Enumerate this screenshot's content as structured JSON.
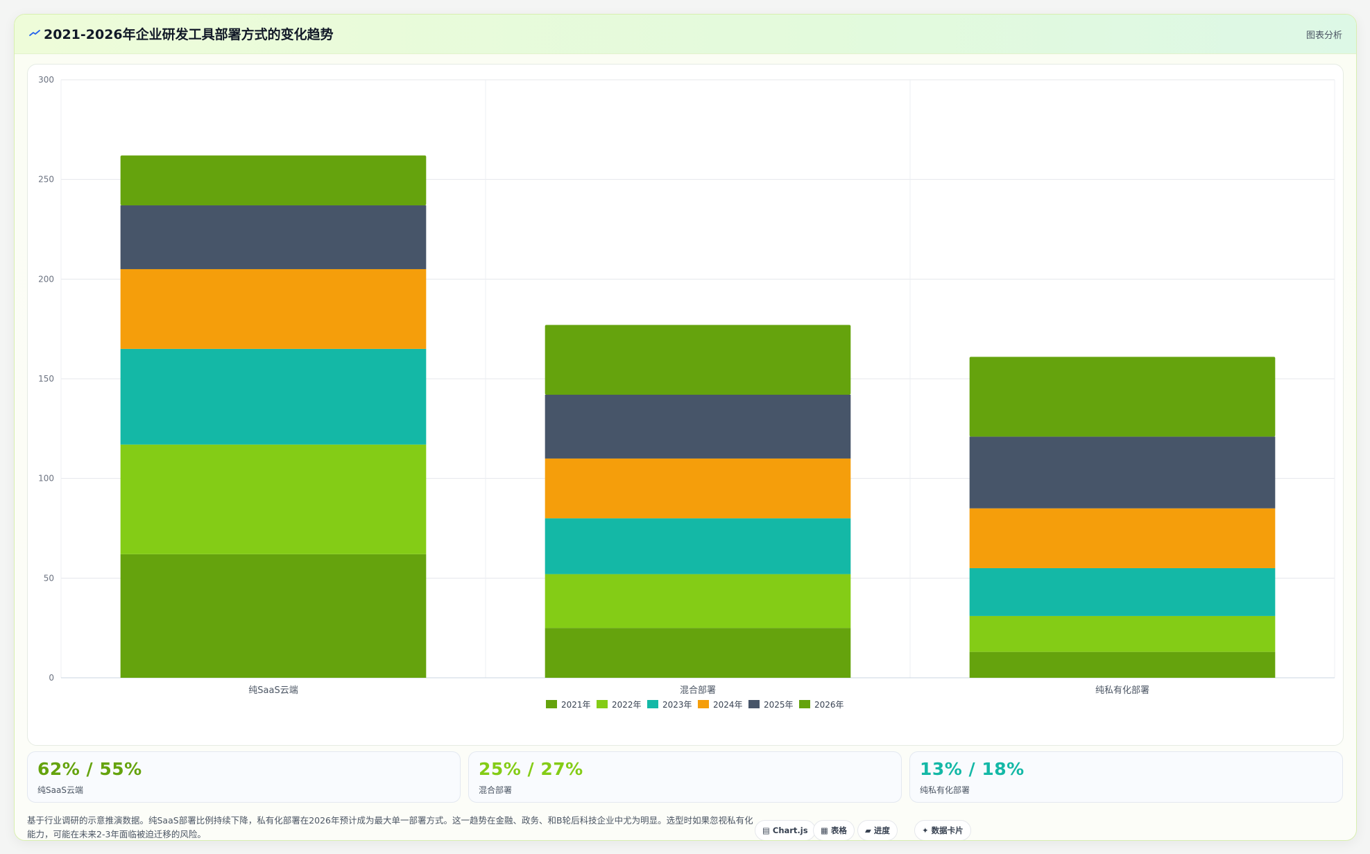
{
  "header": {
    "icon": "trend-line-icon",
    "title": "2021-2026年企业研发工具部署方式的变化趋势",
    "tag": "图表分析"
  },
  "chart_data": {
    "type": "bar",
    "stacked": true,
    "categories": [
      "纯SaaS云端",
      "混合部署",
      "纯私有化部署"
    ],
    "series": [
      {
        "name": "2021年",
        "color": "#65a30d",
        "values": [
          62,
          25,
          13
        ]
      },
      {
        "name": "2022年",
        "color": "#84cc16",
        "values": [
          55,
          27,
          18
        ]
      },
      {
        "name": "2023年",
        "color": "#14b8a6",
        "values": [
          48,
          28,
          24
        ]
      },
      {
        "name": "2024年",
        "color": "#f59e0b",
        "values": [
          40,
          30,
          30
        ]
      },
      {
        "name": "2025年",
        "color": "#475569",
        "values": [
          32,
          32,
          36
        ]
      },
      {
        "name": "2026年",
        "color": "#65a30d",
        "values": [
          25,
          35,
          40
        ]
      }
    ],
    "ylim": [
      0,
      300
    ],
    "yticks": [
      0,
      50,
      100,
      150,
      200,
      250,
      300
    ],
    "grid": true,
    "legend_position": "bottom"
  },
  "stats": [
    {
      "value": "62% / 55%",
      "label": "纯SaaS云端",
      "color": "#65a30d"
    },
    {
      "value": "25% / 27%",
      "label": "混合部署",
      "color": "#84cc16"
    },
    {
      "value": "13% / 18%",
      "label": "纯私有化部署",
      "color": "#14b8a6"
    }
  ],
  "note": "基于行业调研的示意推演数据。纯SaaS部署比例持续下降，私有化部署在2026年预计成为最大单一部署方式。这一趋势在金融、政务、和B轮后科技企业中尤为明显。选型时如果忽视私有化能力，可能在未来2-3年面临被迫迁移的风险。",
  "chips": [
    {
      "label": "Chart.js",
      "icon": "chart-icon"
    },
    {
      "label": "表格",
      "icon": "table-icon"
    },
    {
      "label": "进度",
      "icon": "progress-icon"
    },
    {
      "label": "数据卡片",
      "icon": "sparkle-icon"
    }
  ]
}
